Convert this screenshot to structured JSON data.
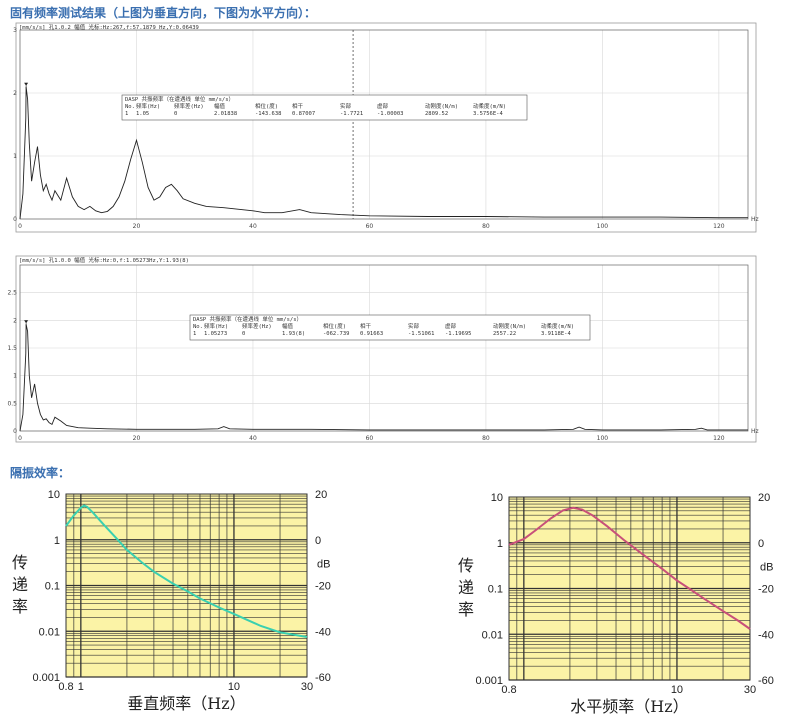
{
  "headings": {
    "test_results": "固有频率测试结果（上图为垂直方向，下图为水平方向）：",
    "isolation": "隔振效率："
  },
  "chart_data": [
    {
      "type": "line",
      "name": "spectrum-vertical",
      "header": "[mm/s/s] 孔1.0.2 幅值 光标:Hz:267,f:57.1879 Hz,Y:0.06439",
      "xunit": "Hz",
      "xlim": [
        0,
        125
      ],
      "ylim": [
        0,
        3
      ],
      "xticks": [
        0,
        20,
        40,
        60,
        80,
        100,
        120
      ],
      "yticks": [
        0,
        1,
        2,
        3
      ],
      "cursor_x": 57.19,
      "marker_x": 1.05,
      "series": [
        {
          "x": [
            0,
            0.5,
            1,
            1.05,
            1.3,
            1.6,
            2,
            2.5,
            3,
            3.5,
            4,
            4.5,
            5,
            5.5,
            6,
            7,
            8,
            9,
            10,
            11,
            12,
            13,
            14,
            15,
            16,
            17,
            18,
            19,
            20,
            21,
            22,
            23,
            24,
            25,
            26,
            27,
            28,
            30,
            32,
            35,
            38,
            40,
            42,
            45,
            48,
            50,
            55,
            60,
            70,
            80,
            90,
            100,
            110,
            120,
            125
          ],
          "y": [
            0,
            0.4,
            1.6,
            2.1,
            1.9,
            1.2,
            0.6,
            0.9,
            1.15,
            0.7,
            0.45,
            0.55,
            0.4,
            0.3,
            0.45,
            0.3,
            0.65,
            0.35,
            0.2,
            0.15,
            0.2,
            0.13,
            0.1,
            0.12,
            0.2,
            0.35,
            0.6,
            0.95,
            1.25,
            0.9,
            0.5,
            0.3,
            0.35,
            0.5,
            0.55,
            0.45,
            0.32,
            0.25,
            0.2,
            0.18,
            0.15,
            0.13,
            0.1,
            0.1,
            0.15,
            0.1,
            0.07,
            0.05,
            0.04,
            0.04,
            0.03,
            0.03,
            0.03,
            0.02,
            0.02
          ]
        }
      ],
      "table": {
        "title": "DASP 共振频率（在遭遇线 单位 mm/s/s）",
        "headers": [
          "No.",
          "频率(Hz)",
          "频率差(Hz)",
          "幅值",
          "相位(度)",
          "相干",
          "实部",
          "虚部",
          "动刚度(N/m)",
          "动柔度(m/N)"
        ],
        "row": [
          "1",
          "1.05",
          "0",
          "2.01838",
          "-143.638",
          "0.87007",
          "-1.7721",
          "-1.00003",
          "2809.52",
          "3.5756E-4"
        ]
      }
    },
    {
      "type": "line",
      "name": "spectrum-horizontal",
      "header": "[mm/s/s] 孔1.0.0 幅值 光标:Hz:0,f:1.05273Hz,Y:1.93(8)",
      "xunit": "Hz",
      "xlim": [
        0,
        125
      ],
      "ylim": [
        0,
        3
      ],
      "xticks": [
        0,
        20,
        40,
        60,
        80,
        100,
        120
      ],
      "yticks": [
        0,
        0.5,
        1,
        1.5,
        2,
        2.5
      ],
      "marker_x": 1.05,
      "series": [
        {
          "x": [
            0,
            0.5,
            1,
            1.05,
            1.3,
            1.6,
            2,
            2.5,
            3,
            3.5,
            4,
            4.5,
            5,
            5.5,
            6,
            7,
            8,
            9,
            10,
            12,
            15,
            20,
            25,
            30,
            34,
            35,
            36,
            40,
            50,
            60,
            70,
            80,
            90,
            95,
            96,
            97,
            100,
            110,
            116,
            117,
            118,
            120,
            125
          ],
          "y": [
            0,
            0.3,
            1.4,
            1.93,
            1.8,
            1.0,
            0.6,
            0.85,
            0.5,
            0.3,
            0.2,
            0.22,
            0.15,
            0.12,
            0.25,
            0.18,
            0.1,
            0.08,
            0.06,
            0.05,
            0.04,
            0.03,
            0.03,
            0.03,
            0.04,
            0.08,
            0.04,
            0.03,
            0.03,
            0.02,
            0.02,
            0.02,
            0.02,
            0.03,
            0.07,
            0.03,
            0.02,
            0.02,
            0.03,
            0.05,
            0.02,
            0.02,
            0.02
          ]
        }
      ],
      "table": {
        "title": "DASP 共振频率（在遭遇线 单位 mm/s/s）",
        "headers": [
          "No.",
          "频率(Hz)",
          "频率差(Hz)",
          "幅值",
          "相位(度)",
          "相干",
          "实部",
          "虚部",
          "动刚度(N/m)",
          "动柔度(m/N)"
        ],
        "row": [
          "1",
          "1.05273",
          "0",
          "1.93(8)",
          "-062.739",
          "0.91663",
          "-1.51061",
          "-1.19695",
          "2557.22",
          "3.9118E-4"
        ]
      }
    },
    {
      "type": "line",
      "name": "transmissibility-vertical",
      "xlabel": "垂直频率（Hz）",
      "ylabel": "传递率",
      "y2label": "dB",
      "xscale": "log",
      "yscale": "log",
      "xlim": [
        0.8,
        30
      ],
      "ylim": [
        0.001,
        10
      ],
      "xticks": [
        "0.8",
        "1",
        "10",
        "30"
      ],
      "yticks": [
        "10",
        "1",
        "0.1",
        "0.01",
        "0.001"
      ],
      "y2ticks": [
        "20",
        "0",
        "-20",
        "-40",
        "-60"
      ],
      "line_color": "#3ad0b0",
      "background": "#fbf3a6",
      "series": [
        {
          "x": [
            0.8,
            0.9,
            1.0,
            1.05,
            1.1,
            1.2,
            1.4,
            1.7,
            2,
            2.5,
            3,
            4,
            5,
            6,
            8,
            10,
            15,
            20,
            30
          ],
          "y": [
            2.0,
            3.4,
            5.0,
            5.6,
            5.2,
            3.9,
            2.2,
            1.1,
            0.6,
            0.32,
            0.2,
            0.11,
            0.074,
            0.052,
            0.033,
            0.024,
            0.013,
            0.0095,
            0.0075
          ]
        }
      ]
    },
    {
      "type": "line",
      "name": "transmissibility-horizontal",
      "xlabel": "水平频率（Hz）",
      "ylabel": "传递率",
      "y2label": "dB",
      "xscale": "log",
      "yscale": "log",
      "xlim": [
        0.8,
        30
      ],
      "ylim": [
        0.001,
        10
      ],
      "xticks": [
        "0.8",
        "10",
        "30"
      ],
      "yticks": [
        "10",
        "1",
        "0.1",
        "0.01",
        "0.001"
      ],
      "y2ticks": [
        "20",
        "0",
        "-20",
        "-40",
        "-60"
      ],
      "line_color": "#c8507a",
      "background": "#fbf3a6",
      "series": [
        {
          "x": [
            0.8,
            1.0,
            1.2,
            1.5,
            1.8,
            2.1,
            2.4,
            2.8,
            3.5,
            4.5,
            6,
            8,
            10,
            12,
            15,
            20,
            25,
            30
          ],
          "y": [
            0.9,
            1.2,
            1.9,
            3.4,
            5.1,
            5.8,
            5.3,
            4.0,
            2.3,
            1.15,
            0.55,
            0.27,
            0.15,
            0.1,
            0.06,
            0.032,
            0.02,
            0.013
          ]
        }
      ]
    }
  ]
}
